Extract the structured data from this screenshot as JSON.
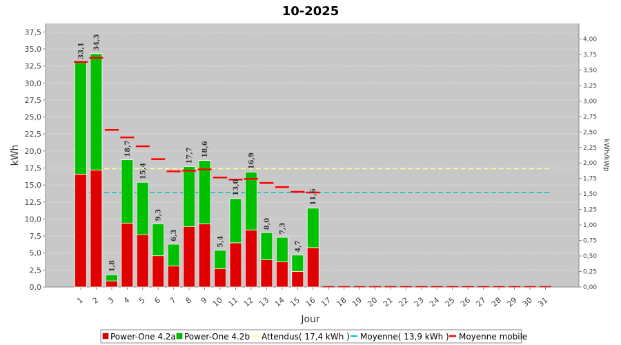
{
  "chart_data": {
    "type": "bar",
    "title": "10-2025",
    "xlabel": "Jour",
    "ylabel": "kWh",
    "ylabel_right": "kWh/kWp",
    "ylim": [
      0,
      38.75
    ],
    "ylim_right": [
      0,
      4.25
    ],
    "y_ticks": [
      "0,0",
      "2,5",
      "5,0",
      "7,5",
      "10,0",
      "12,5",
      "15,0",
      "17,5",
      "20,0",
      "22,5",
      "25,0",
      "27,5",
      "30,0",
      "32,5",
      "35,0",
      "37,5"
    ],
    "y_ticks_right": [
      "0,00",
      "0,25",
      "0,50",
      "0,75",
      "1,00",
      "1,25",
      "1,50",
      "1,75",
      "2,00",
      "2,25",
      "2,50",
      "2,75",
      "3,00",
      "3,25",
      "3,50",
      "3,75",
      "4,00"
    ],
    "categories": [
      "1",
      "2",
      "3",
      "4",
      "5",
      "6",
      "7",
      "8",
      "9",
      "10",
      "11",
      "12",
      "13",
      "14",
      "15",
      "16",
      "17",
      "18",
      "19",
      "20",
      "21",
      "22",
      "23",
      "24",
      "25",
      "26",
      "27",
      "28",
      "29",
      "30",
      "31"
    ],
    "series": [
      {
        "name": "Power-One 4.2a",
        "color": "#e00000",
        "values": [
          16.6,
          17.2,
          0.9,
          9.4,
          7.7,
          4.6,
          3.1,
          8.9,
          9.3,
          2.7,
          6.5,
          8.4,
          4.0,
          3.7,
          2.3,
          5.8,
          0,
          0,
          0,
          0,
          0,
          0,
          0,
          0,
          0,
          0,
          0,
          0,
          0,
          0,
          0
        ]
      },
      {
        "name": "Power-One 4.2b",
        "color": "#00c000",
        "values": [
          16.5,
          17.1,
          0.9,
          9.3,
          7.7,
          4.7,
          3.2,
          8.8,
          9.3,
          2.7,
          6.5,
          8.5,
          4.0,
          3.6,
          2.4,
          5.8,
          0,
          0,
          0,
          0,
          0,
          0,
          0,
          0,
          0,
          0,
          0,
          0,
          0,
          0,
          0
        ]
      }
    ],
    "totals": [
      "33,1",
      "34,3",
      "1,8",
      "18,7",
      "15,4",
      "9,3",
      "6,3",
      "17,7",
      "18,6",
      "5,4",
      "13,0",
      "16,9",
      "8,0",
      "7,3",
      "4,7",
      "11,6"
    ],
    "moyenne_mobile": {
      "name": "Moyenne mobile",
      "color": "#ff0000",
      "values": [
        33.1,
        33.7,
        23.1,
        22.0,
        20.7,
        18.8,
        17.0,
        17.1,
        17.3,
        16.1,
        15.8,
        15.9,
        15.3,
        14.7,
        14.0,
        13.9
      ]
    },
    "attendus": {
      "name": "Attendus( 17,4 kWh )",
      "value": 17.4,
      "color": "#ffff80"
    },
    "moyenne": {
      "name": "Moyenne( 13,9 kWh )",
      "value": 13.9,
      "color": "#00c0c0"
    },
    "grid": true,
    "plot_background": "#c8c8c8",
    "legend_position": "bottom"
  }
}
